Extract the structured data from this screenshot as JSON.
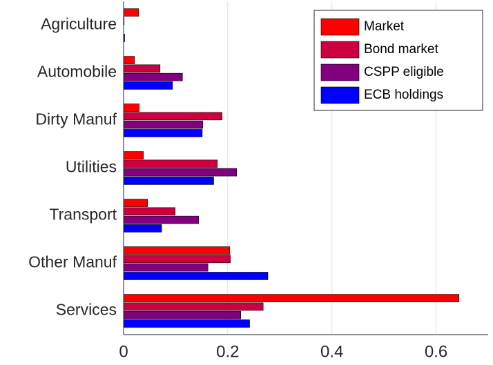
{
  "chart_data": {
    "type": "barh",
    "categories": [
      "Agriculture",
      "Automobile",
      "Dirty Manuf",
      "Utilities",
      "Transport",
      "Other Manuf",
      "Services"
    ],
    "series": [
      {
        "name": "Market",
        "color": "#ff0000",
        "values": [
          0.029,
          0.021,
          0.03,
          0.038,
          0.046,
          0.204,
          0.644
        ]
      },
      {
        "name": "Bond market",
        "color": "#cc0040",
        "values": [
          0.001,
          0.07,
          0.189,
          0.18,
          0.099,
          0.205,
          0.268
        ]
      },
      {
        "name": "CSPP eligible",
        "color": "#800080",
        "values": [
          0.0,
          0.113,
          0.152,
          0.217,
          0.144,
          0.162,
          0.225
        ]
      },
      {
        "name": "ECB holdings",
        "color": "#0000ff",
        "values": [
          0.002,
          0.094,
          0.151,
          0.173,
          0.073,
          0.277,
          0.242
        ]
      }
    ],
    "xlim": [
      0,
      0.7
    ],
    "xticks": [
      0,
      0.2,
      0.4,
      0.6
    ],
    "grid": true,
    "legend": "top-right"
  }
}
